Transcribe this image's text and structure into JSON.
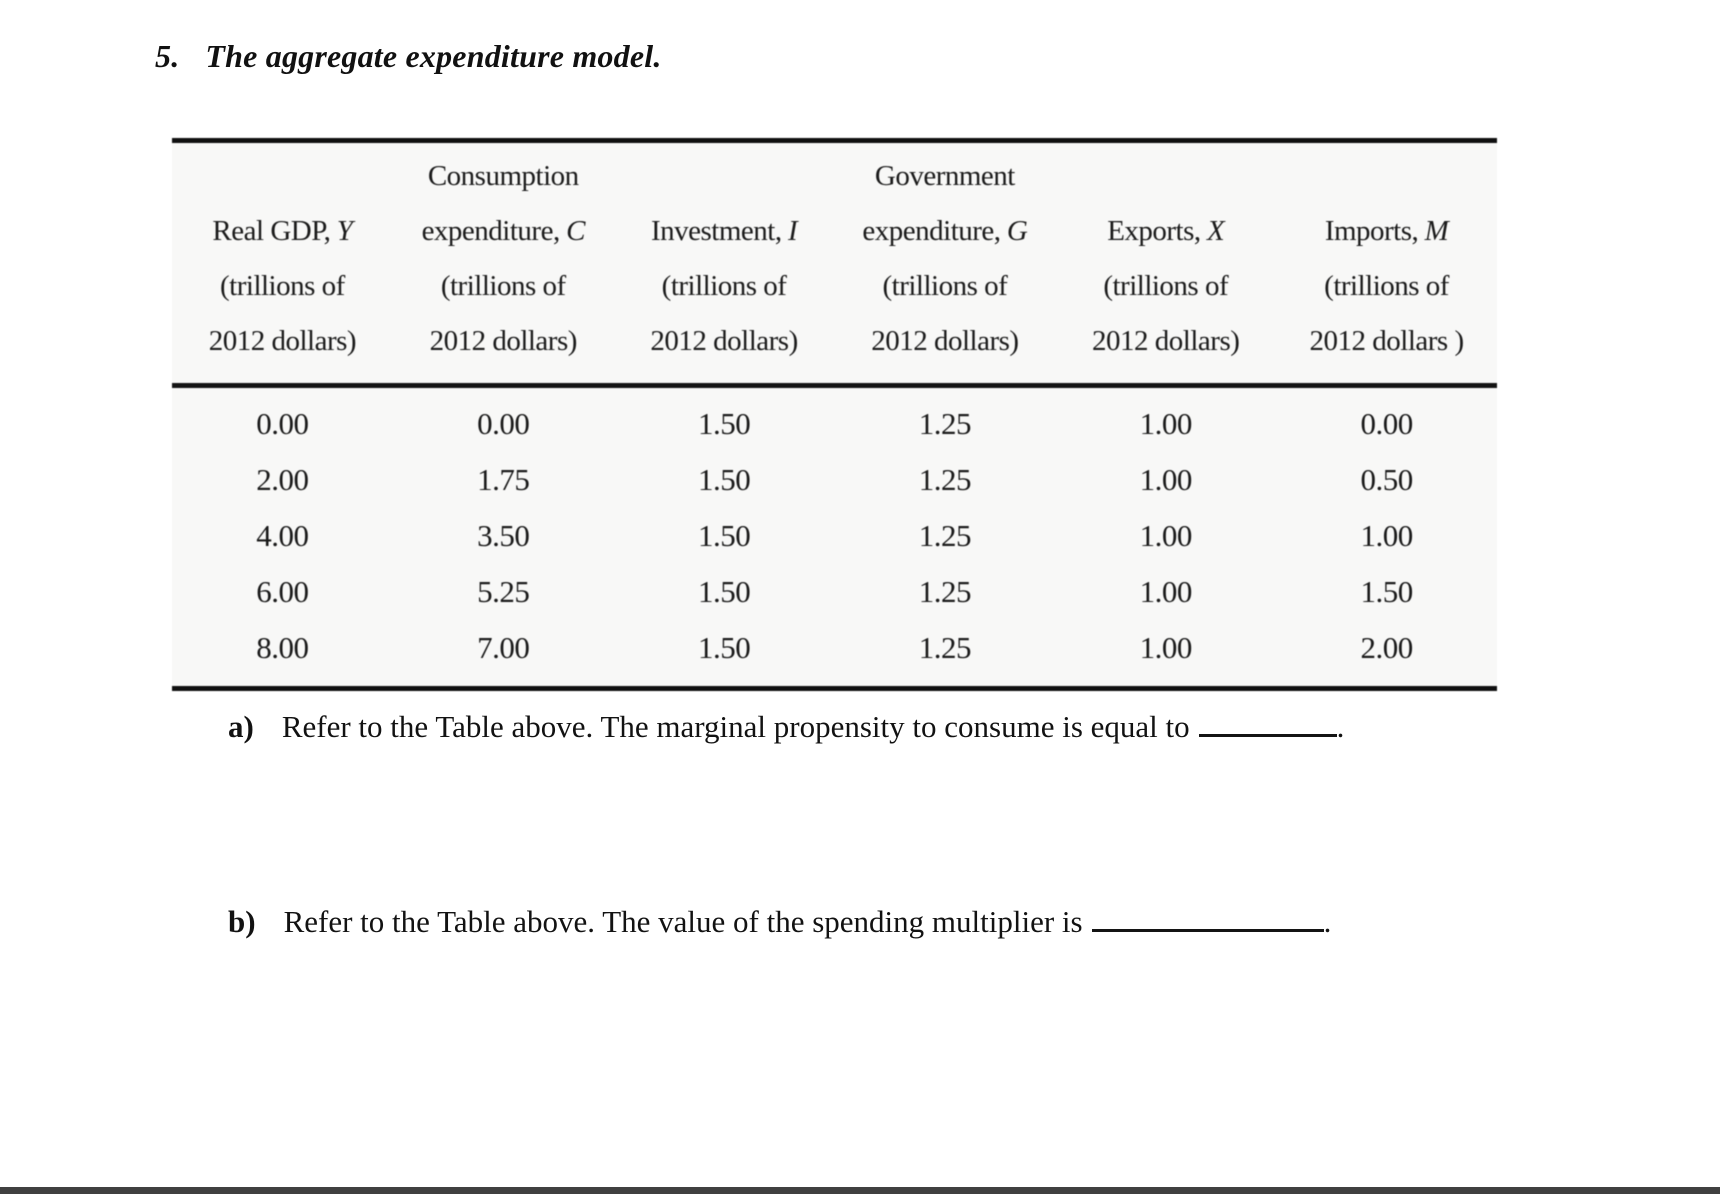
{
  "title": {
    "number": "5.",
    "text": "The aggregate expenditure model."
  },
  "table": {
    "columns": [
      {
        "top": "",
        "label": "Real GDP,",
        "symbol": "Y",
        "unit1": "(trillions of",
        "unit2": "2012 dollars)"
      },
      {
        "top": "Consumption",
        "label": "expenditure,",
        "symbol": "C",
        "unit1": "(trillions of",
        "unit2": "2012 dollars)"
      },
      {
        "top": "",
        "label": "Investment,",
        "symbol": "I",
        "unit1": "(trillions of",
        "unit2": "2012 dollars)"
      },
      {
        "top": "Government",
        "label": "expenditure,",
        "symbol": "G",
        "unit1": "(trillions of",
        "unit2": "2012 dollars)"
      },
      {
        "top": "",
        "label": "Exports,",
        "symbol": "X",
        "unit1": "(trillions of",
        "unit2": "2012 dollars)"
      },
      {
        "top": "",
        "label": "Imports,",
        "symbol": "M",
        "unit1": "(trillions of",
        "unit2": "2012 dollars )"
      }
    ],
    "rows": [
      [
        "0.00",
        "0.00",
        "1.50",
        "1.25",
        "1.00",
        "0.00"
      ],
      [
        "2.00",
        "1.75",
        "1.50",
        "1.25",
        "1.00",
        "0.50"
      ],
      [
        "4.00",
        "3.50",
        "1.50",
        "1.25",
        "1.00",
        "1.00"
      ],
      [
        "6.00",
        "5.25",
        "1.50",
        "1.25",
        "1.00",
        "1.50"
      ],
      [
        "8.00",
        "7.00",
        "1.50",
        "1.25",
        "1.00",
        "2.00"
      ]
    ]
  },
  "questions": [
    {
      "label": "a)",
      "text": "Refer to the Table above. The marginal propensity to consume is equal to",
      "after_blank": "."
    },
    {
      "label": "b)",
      "text": "Refer to the Table above. The value of the spending multiplier is",
      "after_blank": "."
    }
  ],
  "colors": {
    "bottom_bar": "#404040",
    "table_background": "#f8f8f7",
    "text": "#161616"
  }
}
